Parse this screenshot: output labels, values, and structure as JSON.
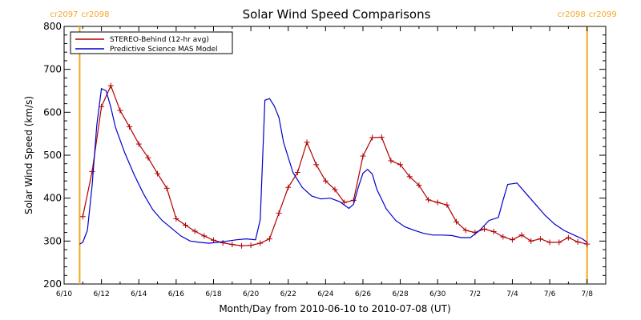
{
  "chart_data": {
    "type": "line",
    "title": "Solar Wind Speed Comparisons",
    "xlabel": "Month/Day from 2010-06-10 to 2010-07-08 (UT)",
    "ylabel": "Solar Wind Speed (km/s)",
    "xlim": [
      "2010-06-10",
      "2010-07-09"
    ],
    "ylim": [
      200,
      800
    ],
    "x_ticks": [
      {
        "date": "2010-06-10",
        "label": "6/10"
      },
      {
        "date": "2010-06-12",
        "label": "6/12"
      },
      {
        "date": "2010-06-14",
        "label": "6/14"
      },
      {
        "date": "2010-06-16",
        "label": "6/16"
      },
      {
        "date": "2010-06-18",
        "label": "6/18"
      },
      {
        "date": "2010-06-20",
        "label": "6/20"
      },
      {
        "date": "2010-06-22",
        "label": "6/22"
      },
      {
        "date": "2010-06-24",
        "label": "6/24"
      },
      {
        "date": "2010-06-26",
        "label": "6/26"
      },
      {
        "date": "2010-06-28",
        "label": "6/28"
      },
      {
        "date": "2010-06-30",
        "label": "6/30"
      },
      {
        "date": "2010-07-02",
        "label": "7/2"
      },
      {
        "date": "2010-07-04",
        "label": "7/4"
      },
      {
        "date": "2010-07-06",
        "label": "7/6"
      },
      {
        "date": "2010-07-08",
        "label": "7/8"
      }
    ],
    "y_ticks": [
      200,
      300,
      400,
      500,
      600,
      700,
      800
    ],
    "grid": false,
    "legend": "top-left",
    "carrington_markers": [
      {
        "date": "2010-06-10 20:00",
        "label_left": "cr2097",
        "label_right": "cr2098",
        "color": "#f5a623"
      },
      {
        "date": "2010-07-08 00:00",
        "label_left": "cr2098",
        "label_right": "cr2099",
        "color": "#f5a623"
      }
    ],
    "series": [
      {
        "name": "STEREO-Behind (12-hr avg)",
        "color": "#b00000",
        "marker": "+",
        "x": [
          "2010-06-11 00:00",
          "2010-06-11 12:00",
          "2010-06-12 00:00",
          "2010-06-12 12:00",
          "2010-06-13 00:00",
          "2010-06-13 12:00",
          "2010-06-14 00:00",
          "2010-06-14 12:00",
          "2010-06-15 00:00",
          "2010-06-15 12:00",
          "2010-06-16 00:00",
          "2010-06-16 12:00",
          "2010-06-17 00:00",
          "2010-06-17 12:00",
          "2010-06-18 00:00",
          "2010-06-18 12:00",
          "2010-06-19 00:00",
          "2010-06-19 12:00",
          "2010-06-20 00:00",
          "2010-06-20 12:00",
          "2010-06-21 00:00",
          "2010-06-21 12:00",
          "2010-06-22 00:00",
          "2010-06-22 12:00",
          "2010-06-23 00:00",
          "2010-06-23 12:00",
          "2010-06-24 00:00",
          "2010-06-24 12:00",
          "2010-06-25 00:00",
          "2010-06-25 12:00",
          "2010-06-26 00:00",
          "2010-06-26 12:00",
          "2010-06-27 00:00",
          "2010-06-27 12:00",
          "2010-06-28 00:00",
          "2010-06-28 12:00",
          "2010-06-29 00:00",
          "2010-06-29 12:00",
          "2010-06-30 00:00",
          "2010-06-30 12:00",
          "2010-07-01 00:00",
          "2010-07-01 12:00",
          "2010-07-02 00:00",
          "2010-07-02 12:00",
          "2010-07-03 00:00",
          "2010-07-03 12:00",
          "2010-07-04 00:00",
          "2010-07-04 12:00",
          "2010-07-05 00:00",
          "2010-07-05 12:00",
          "2010-07-06 00:00",
          "2010-07-06 12:00",
          "2010-07-07 00:00",
          "2010-07-07 12:00",
          "2010-07-08 00:00"
        ],
        "values": [
          357,
          462,
          613,
          662,
          604,
          566,
          526,
          494,
          457,
          423,
          352,
          337,
          323,
          312,
          302,
          296,
          292,
          289,
          290,
          295,
          305,
          365,
          425,
          460,
          530,
          478,
          440,
          420,
          390,
          395,
          498,
          541,
          542,
          487,
          478,
          450,
          430,
          396,
          390,
          384,
          345,
          325,
          320,
          328,
          322,
          310,
          303,
          314,
          300,
          305,
          297,
          297,
          308,
          298,
          293
        ]
      },
      {
        "name": "Predictive Science MAS Model",
        "color": "#0000cc",
        "marker": "none",
        "x": [
          "2010-06-10 20:00",
          "2010-06-11 00:00",
          "2010-06-11 06:00",
          "2010-06-11 12:00",
          "2010-06-11 18:00",
          "2010-06-12 00:00",
          "2010-06-12 06:00",
          "2010-06-12 12:00",
          "2010-06-12 18:00",
          "2010-06-13 06:00",
          "2010-06-13 18:00",
          "2010-06-14 06:00",
          "2010-06-14 18:00",
          "2010-06-15 06:00",
          "2010-06-15 18:00",
          "2010-06-16 06:00",
          "2010-06-16 18:00",
          "2010-06-17 06:00",
          "2010-06-17 18:00",
          "2010-06-18 06:00",
          "2010-06-18 18:00",
          "2010-06-19 06:00",
          "2010-06-19 18:00",
          "2010-06-20 06:00",
          "2010-06-20 12:00",
          "2010-06-20 18:00",
          "2010-06-21 00:00",
          "2010-06-21 06:00",
          "2010-06-21 12:00",
          "2010-06-21 18:00",
          "2010-06-22 06:00",
          "2010-06-22 18:00",
          "2010-06-23 06:00",
          "2010-06-23 18:00",
          "2010-06-24 06:00",
          "2010-06-24 18:00",
          "2010-06-25 06:00",
          "2010-06-25 12:00",
          "2010-06-25 18:00",
          "2010-06-26 00:00",
          "2010-06-26 06:00",
          "2010-06-26 12:00",
          "2010-06-26 18:00",
          "2010-06-27 06:00",
          "2010-06-27 18:00",
          "2010-06-28 06:00",
          "2010-06-28 18:00",
          "2010-06-29 06:00",
          "2010-06-29 18:00",
          "2010-06-30 06:00",
          "2010-06-30 18:00",
          "2010-07-01 06:00",
          "2010-07-01 18:00",
          "2010-07-02 06:00",
          "2010-07-02 18:00",
          "2010-07-03 06:00",
          "2010-07-03 12:00",
          "2010-07-03 18:00",
          "2010-07-04 06:00",
          "2010-07-04 18:00",
          "2010-07-05 06:00",
          "2010-07-05 18:00",
          "2010-07-06 06:00",
          "2010-07-06 18:00",
          "2010-07-07 06:00",
          "2010-07-07 18:00",
          "2010-07-08 00:00"
        ],
        "values": [
          293,
          297,
          325,
          430,
          570,
          655,
          650,
          612,
          565,
          505,
          455,
          410,
          373,
          348,
          330,
          312,
          300,
          297,
          295,
          297,
          300,
          303,
          305,
          303,
          350,
          628,
          632,
          615,
          588,
          530,
          460,
          425,
          405,
          398,
          400,
          392,
          376,
          386,
          425,
          458,
          467,
          456,
          420,
          375,
          348,
          333,
          325,
          318,
          314,
          314,
          313,
          308,
          308,
          325,
          348,
          355,
          395,
          432,
          435,
          410,
          385,
          360,
          340,
          325,
          315,
          305,
          297
        ]
      }
    ]
  }
}
